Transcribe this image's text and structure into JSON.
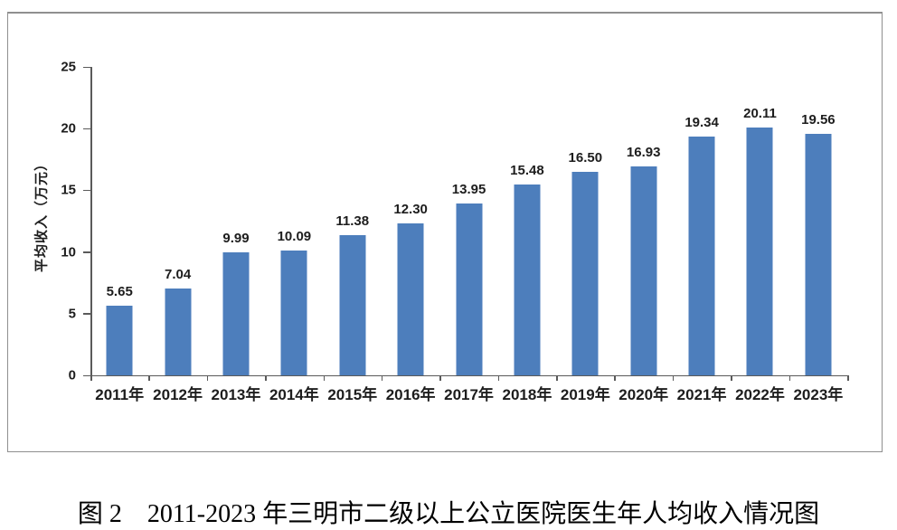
{
  "figure": {
    "caption": "图 2　2011-2023 年三明市二级以上公立医院医生年人均收入情况图"
  },
  "chart_data": {
    "type": "bar",
    "title": "",
    "xlabel": "",
    "ylabel": "平均收入（万元）",
    "categories": [
      "2011年",
      "2012年",
      "2013年",
      "2014年",
      "2015年",
      "2016年",
      "2017年",
      "2018年",
      "2019年",
      "2020年",
      "2021年",
      "2022年",
      "2023年"
    ],
    "values": [
      5.65,
      7.04,
      9.99,
      10.09,
      11.38,
      12.3,
      13.95,
      15.48,
      16.5,
      16.93,
      19.34,
      20.11,
      19.56
    ],
    "value_labels": [
      "5.65",
      "7.04",
      "9.99",
      "10.09",
      "11.38",
      "12.30",
      "13.95",
      "15.48",
      "16.50",
      "16.93",
      "19.34",
      "20.11",
      "19.56"
    ],
    "ylim": [
      0,
      25
    ],
    "yticks": [
      0,
      5,
      10,
      15,
      20,
      25
    ],
    "bar_color": "#4d7ebc",
    "axis_color": "#5a5a5a",
    "grid": false,
    "legend": "none"
  }
}
